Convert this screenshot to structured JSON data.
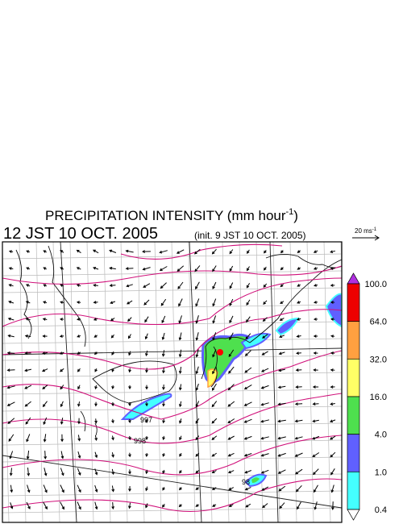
{
  "title": {
    "text": "PRECIPITATION INTENSITY (mm hour",
    "superscript": "-1",
    "close": ")"
  },
  "time": "12 JST 10 OCT. 2005",
  "init": "(init. 9 JST 10 OCT. 2005)",
  "scale_arrow": {
    "text": "20 ms",
    "superscript": "-1"
  },
  "colorbar": {
    "labels": [
      "100.0",
      "64.0",
      "32.0",
      "16.0",
      "4.0",
      "1.0",
      "0.4"
    ]
  },
  "contour_labels": [
    "997",
    "998",
    "98"
  ]
}
